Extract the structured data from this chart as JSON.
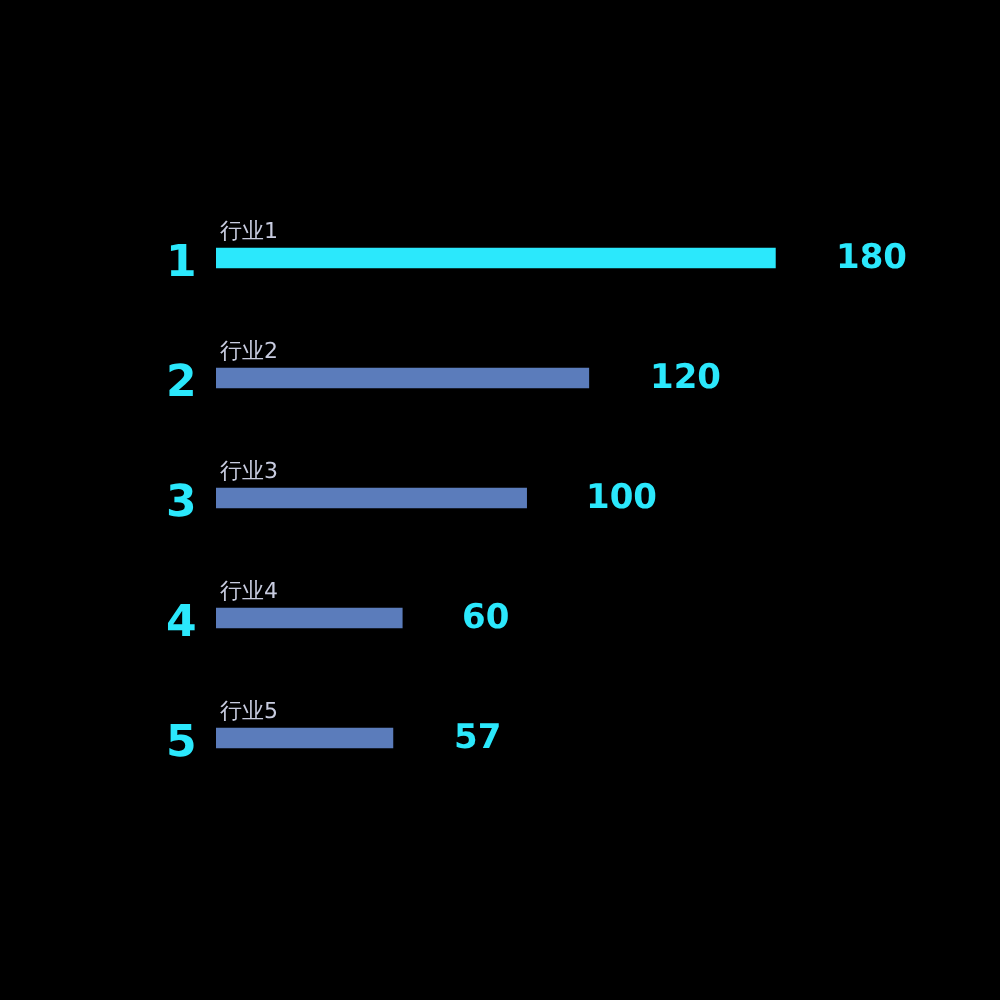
{
  "chart_data": {
    "type": "bar",
    "orientation": "horizontal",
    "categories": [
      "行业1",
      "行业2",
      "行业3",
      "行业4",
      "行业5"
    ],
    "values": [
      180,
      120,
      100,
      60,
      57
    ],
    "colors": [
      "#2be8fc",
      "#5b7cbb",
      "#5b7cbb",
      "#5b7cbb",
      "#5b7cbb"
    ],
    "data_labels": true,
    "grid": false,
    "legend": false,
    "tick_labels": false,
    "annotations": [
      "1",
      "2",
      "3",
      "4",
      "5"
    ]
  }
}
